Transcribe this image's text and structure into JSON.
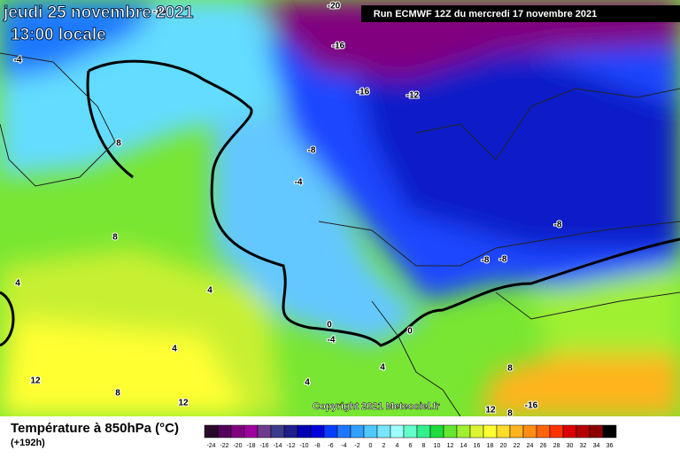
{
  "map": {
    "title": "jeudi 25 novembre 2021",
    "time": "13:00 locale",
    "run": "Run ECMWF 12Z du mercredi 17 novembre 2021",
    "copyright": "Copyright 2021 Meteociel.fr",
    "contour_labels": [
      -16,
      -20,
      -16,
      -16,
      -12,
      -8,
      -4,
      -8,
      -8,
      -8,
      8,
      -4,
      8,
      4,
      4,
      4,
      0,
      -4,
      0,
      4,
      4,
      8,
      8,
      8,
      12,
      12,
      -16,
      12
    ]
  },
  "legend": {
    "title": "Température à 850hPa (°C)",
    "lead": "(+192h)",
    "ticks": [
      -24,
      -22,
      -20,
      -18,
      -16,
      -14,
      -12,
      -10,
      -8,
      -6,
      -4,
      -2,
      0,
      2,
      4,
      6,
      8,
      10,
      12,
      14,
      16,
      18,
      20,
      22,
      24,
      26,
      28,
      30,
      32,
      34,
      36
    ],
    "colors": [
      "#2a0a2a",
      "#55005a",
      "#80007f",
      "#a000a0",
      "#6e3c8c",
      "#3c3c8c",
      "#1e1e8c",
      "#0000b4",
      "#0000dc",
      "#0a3cff",
      "#1e78ff",
      "#32a0ff",
      "#50c8ff",
      "#78e6ff",
      "#a0ffff",
      "#64ffc8",
      "#32f08c",
      "#1edc3c",
      "#64e632",
      "#a0f032",
      "#dcf532",
      "#ffff32",
      "#ffdc28",
      "#ffb41e",
      "#ff8c14",
      "#ff640a",
      "#ff3200",
      "#dc0000",
      "#b40000",
      "#8c0000",
      "#000000"
    ]
  }
}
